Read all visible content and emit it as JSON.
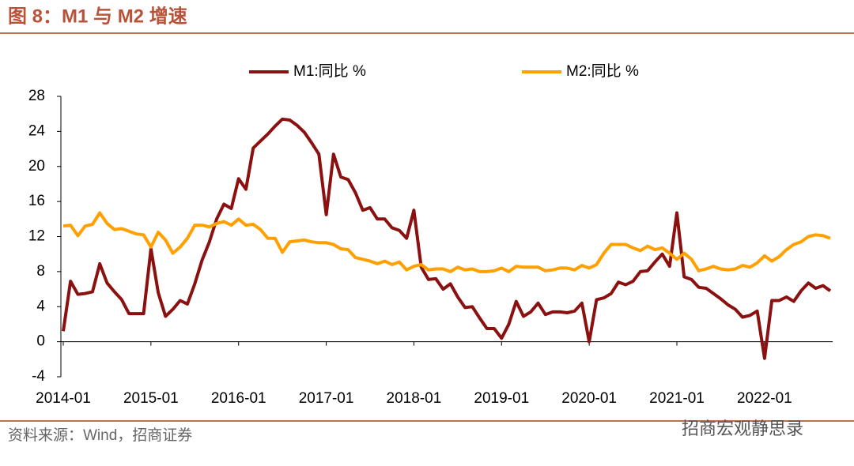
{
  "chart_data": {
    "type": "line",
    "title": "图 8：M1 与 M2 增速",
    "source": "资料来源：Wind，招商证券",
    "watermark": "招商宏观静思录",
    "categories": [
      "2014-01",
      null,
      null,
      null,
      null,
      null,
      null,
      null,
      null,
      null,
      null,
      null,
      "2015-01",
      null,
      null,
      null,
      null,
      null,
      null,
      null,
      null,
      null,
      null,
      null,
      "2016-01",
      null,
      null,
      null,
      null,
      null,
      null,
      null,
      null,
      null,
      null,
      null,
      "2017-01",
      null,
      null,
      null,
      null,
      null,
      null,
      null,
      null,
      null,
      null,
      null,
      "2018-01",
      null,
      null,
      null,
      null,
      null,
      null,
      null,
      null,
      null,
      null,
      null,
      "2019-01",
      null,
      null,
      null,
      null,
      null,
      null,
      null,
      null,
      null,
      null,
      null,
      "2020-01",
      null,
      null,
      null,
      null,
      null,
      null,
      null,
      null,
      null,
      null,
      null,
      "2021-01",
      null,
      null,
      null,
      null,
      null,
      null,
      null,
      null,
      null,
      null,
      null,
      "2022-01",
      null,
      null,
      null,
      null,
      null,
      null,
      null,
      null,
      null
    ],
    "series": [
      {
        "name": "M1:同比 %",
        "color": "#8b1010",
        "values": [
          1.2,
          6.9,
          5.4,
          5.5,
          5.7,
          8.9,
          6.7,
          5.7,
          4.8,
          3.2,
          3.2,
          3.2,
          10.6,
          5.6,
          2.9,
          3.7,
          4.7,
          4.3,
          6.6,
          9.3,
          11.4,
          14.0,
          15.7,
          15.2,
          18.6,
          17.4,
          22.1,
          22.9,
          23.7,
          24.6,
          25.4,
          25.3,
          24.7,
          23.9,
          22.7,
          21.4,
          14.5,
          21.4,
          18.8,
          18.5,
          17.0,
          15.0,
          15.3,
          14.0,
          14.0,
          13.0,
          12.7,
          11.8,
          15.0,
          8.5,
          7.1,
          7.2,
          6.0,
          6.6,
          5.1,
          3.9,
          4.0,
          2.7,
          1.5,
          1.5,
          0.4,
          2.0,
          4.6,
          2.9,
          3.4,
          4.4,
          3.1,
          3.4,
          3.4,
          3.3,
          3.5,
          4.4,
          0.0,
          4.8,
          5.0,
          5.5,
          6.8,
          6.5,
          6.9,
          8.0,
          8.1,
          9.1,
          10.0,
          8.6,
          14.7,
          7.4,
          7.1,
          6.2,
          6.1,
          5.5,
          4.9,
          4.2,
          3.7,
          2.8,
          3.0,
          3.5,
          -1.9,
          4.7,
          4.7,
          5.1,
          4.6,
          5.8,
          6.7,
          6.1,
          6.4,
          5.8
        ]
      },
      {
        "name": "M2:同比 %",
        "color": "#ffa000",
        "values": [
          13.2,
          13.3,
          12.1,
          13.2,
          13.4,
          14.7,
          13.5,
          12.8,
          12.9,
          12.6,
          12.3,
          12.2,
          10.8,
          12.5,
          11.6,
          10.1,
          10.8,
          11.8,
          13.3,
          13.3,
          13.1,
          13.5,
          13.7,
          13.3,
          14.0,
          13.3,
          13.4,
          12.8,
          11.8,
          11.8,
          10.2,
          11.4,
          11.5,
          11.6,
          11.4,
          11.3,
          11.3,
          11.1,
          10.6,
          10.5,
          9.6,
          9.4,
          9.2,
          8.9,
          9.2,
          8.8,
          9.1,
          8.2,
          8.6,
          8.8,
          8.2,
          8.3,
          8.3,
          8.0,
          8.5,
          8.2,
          8.3,
          8.0,
          8.0,
          8.1,
          8.4,
          8.0,
          8.6,
          8.5,
          8.5,
          8.5,
          8.1,
          8.2,
          8.4,
          8.4,
          8.2,
          8.7,
          8.4,
          8.8,
          10.1,
          11.1,
          11.1,
          11.1,
          10.7,
          10.4,
          10.9,
          10.5,
          10.7,
          10.1,
          9.4,
          10.1,
          9.4,
          8.1,
          8.3,
          8.6,
          8.3,
          8.2,
          8.3,
          8.7,
          8.5,
          9.0,
          9.8,
          9.2,
          9.7,
          10.5,
          11.1,
          11.4,
          12.0,
          12.2,
          12.1,
          11.8
        ]
      }
    ],
    "ylim": [
      -4,
      28
    ],
    "yticks": [
      -4,
      0,
      4,
      8,
      12,
      16,
      20,
      24,
      28
    ],
    "legend": "top"
  }
}
